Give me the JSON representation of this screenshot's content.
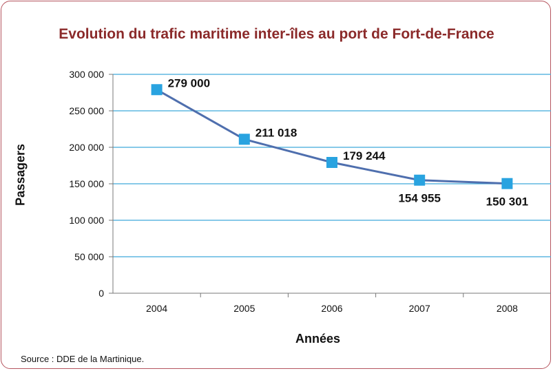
{
  "chart_data": {
    "type": "line",
    "title": "Evolution du trafic maritime inter-îles au port de Fort-de-France",
    "xlabel": "Années",
    "ylabel": "Passagers",
    "categories": [
      "2004",
      "2005",
      "2006",
      "2007",
      "2008"
    ],
    "series": [
      {
        "values": [
          279000,
          211018,
          179244,
          154955,
          150301
        ],
        "data_labels": [
          "279 000",
          "211 018",
          "179 244",
          "154 955",
          "150 301"
        ],
        "line_color": "#4f6fae",
        "marker_color": "#29a3e0",
        "marker": "square"
      }
    ],
    "ylim": [
      0,
      300000
    ],
    "yticks": [
      0,
      50000,
      100000,
      150000,
      200000,
      250000,
      300000
    ],
    "ytick_labels": [
      "0",
      "50 000",
      "100 000",
      "150 000",
      "200 000",
      "250 000",
      "300 000"
    ],
    "grid": true,
    "legend": "none"
  },
  "source": "Source : DDE de la Martinique.",
  "colors": {
    "title": "#8b2a2a",
    "frame": "#b5545e",
    "grid": "#3fa9d9"
  }
}
